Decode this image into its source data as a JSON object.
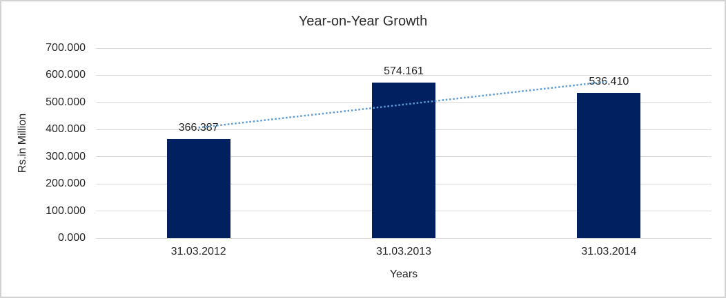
{
  "chart_data": {
    "type": "bar",
    "title": "Year-on-Year Growth",
    "xlabel": "Years",
    "ylabel": "Rs.in Million",
    "categories": [
      "31.03.2012",
      "31.03.2013",
      "31.03.2014"
    ],
    "values": [
      366.387,
      574.161,
      536.41
    ],
    "data_labels": [
      "366.387",
      "574.161",
      "536.410"
    ],
    "ylim": [
      0,
      700
    ],
    "y_tick_step": 100,
    "y_tick_labels_top_to_bottom": [
      "700.000",
      "600.000",
      "500.000",
      "400.000",
      "300.000",
      "200.000",
      "100.000",
      "0.000"
    ],
    "grid": true,
    "legend": false,
    "trendline": {
      "type": "linear",
      "style": "dotted"
    },
    "colors": {
      "bar": "#002060",
      "trendline": "#5b9bd5",
      "gridline": "#d9d9d9",
      "border": "#d2d2d2",
      "text": "#262626"
    }
  }
}
